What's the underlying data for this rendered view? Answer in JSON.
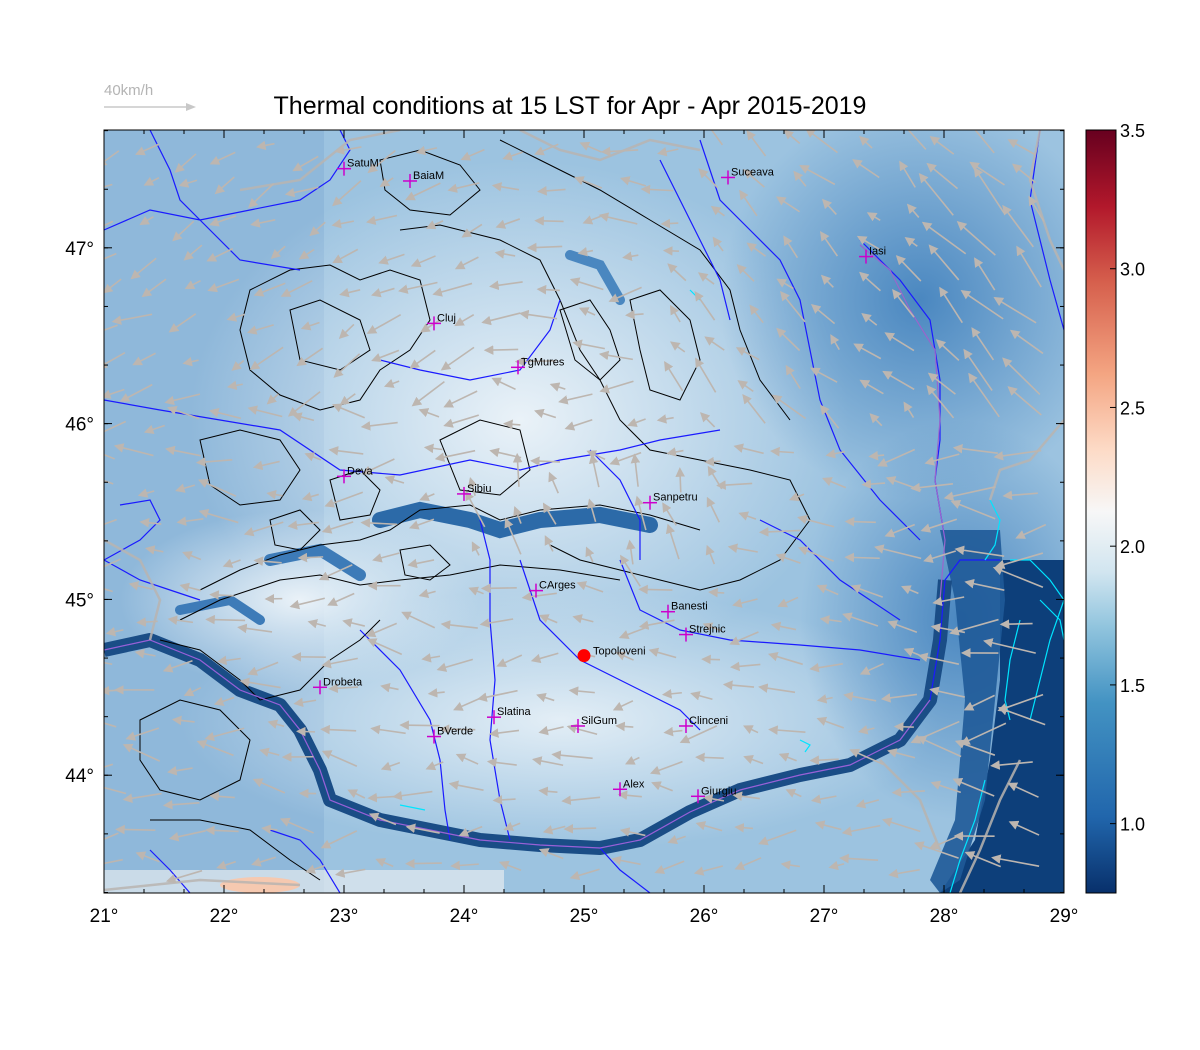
{
  "title": "Thermal conditions at 15 LST for Apr - Apr  2015-2019",
  "vector_key": {
    "label": "40km/h"
  },
  "map": {
    "lon_range": [
      21,
      29
    ],
    "lat_range": [
      43.33,
      47.67
    ],
    "lon_tick_labels": [
      "21°",
      "22°",
      "23°",
      "24°",
      "25°",
      "26°",
      "27°",
      "28°",
      "29°"
    ],
    "lat_tick_labels": [
      "44°",
      "45°",
      "46°",
      "47°"
    ],
    "lon_ticks": [
      21,
      22,
      23,
      24,
      25,
      26,
      27,
      28,
      29
    ],
    "lat_ticks": [
      44,
      45,
      46,
      47
    ]
  },
  "stations": [
    {
      "name": "SatuM",
      "lon": 23.0,
      "lat": 47.45
    },
    {
      "name": "BaiaM",
      "lon": 23.55,
      "lat": 47.38
    },
    {
      "name": "Suceava",
      "lon": 26.2,
      "lat": 47.4
    },
    {
      "name": "Iasi",
      "lon": 27.35,
      "lat": 46.95
    },
    {
      "name": "Cluj",
      "lon": 23.75,
      "lat": 46.57
    },
    {
      "name": "TgMures",
      "lon": 24.45,
      "lat": 46.32
    },
    {
      "name": "Deva",
      "lon": 23.0,
      "lat": 45.7
    },
    {
      "name": "Sibiu",
      "lon": 24.0,
      "lat": 45.6
    },
    {
      "name": "Sanpetru",
      "lon": 25.55,
      "lat": 45.55
    },
    {
      "name": "CArges",
      "lon": 24.6,
      "lat": 45.05
    },
    {
      "name": "Banesti",
      "lon": 25.7,
      "lat": 44.93
    },
    {
      "name": "Strejnic",
      "lon": 25.85,
      "lat": 44.8
    },
    {
      "name": "Drobeta",
      "lon": 22.8,
      "lat": 44.5
    },
    {
      "name": "Slatina",
      "lon": 24.25,
      "lat": 44.33
    },
    {
      "name": "SilGum",
      "lon": 24.95,
      "lat": 44.28
    },
    {
      "name": "Clinceni",
      "lon": 25.85,
      "lat": 44.28
    },
    {
      "name": "BVerde",
      "lon": 23.75,
      "lat": 44.22
    },
    {
      "name": "Alex",
      "lon": 25.3,
      "lat": 43.92
    },
    {
      "name": "Giurgiu",
      "lon": 25.95,
      "lat": 43.88
    }
  ],
  "highlight_point": {
    "name": "Topoloveni",
    "lon": 25.0,
    "lat": 44.68,
    "color": "#ff0000"
  },
  "colorbar": {
    "min": 0.75,
    "max": 3.5,
    "tick_labels": [
      "1.0",
      "1.5",
      "2.0",
      "2.5",
      "3.0",
      "3.5"
    ],
    "ticks": [
      1.0,
      1.5,
      2.0,
      2.5,
      3.0,
      3.5
    ],
    "colors": [
      "#08306b",
      "#2166ac",
      "#4393c3",
      "#92c5de",
      "#d1e5f0",
      "#f7f7f7",
      "#fddbc7",
      "#f4a582",
      "#d6604d",
      "#b2182b",
      "#67001f"
    ]
  },
  "colors": {
    "station_marker": "#cc00cc",
    "rivers": "#1a1aff",
    "contours": "#000000",
    "vectors": "#b9b4b0",
    "lakes": "#00e5ff"
  }
}
